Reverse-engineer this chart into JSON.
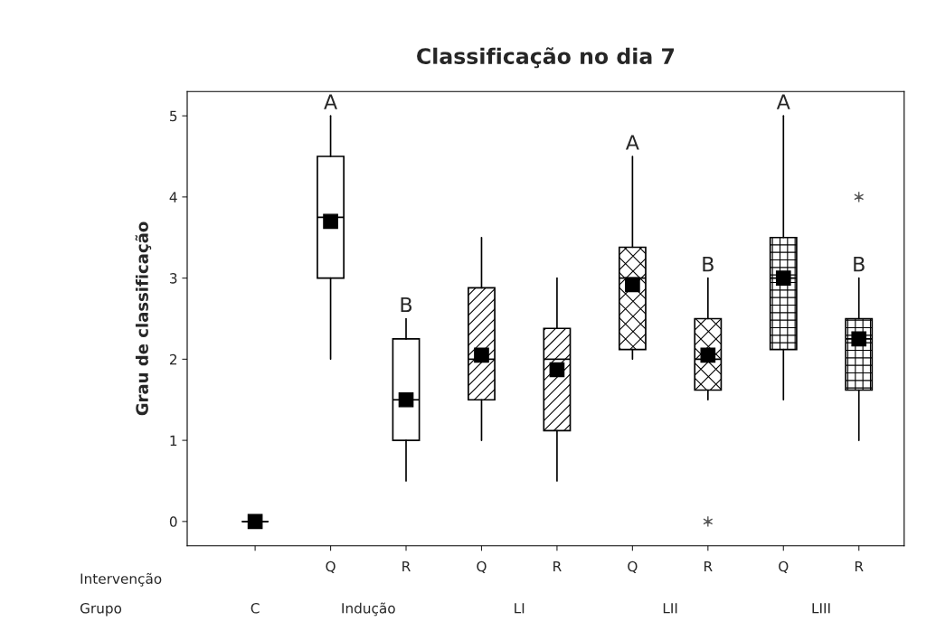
{
  "chart_data": {
    "type": "box",
    "title": "Classificação no dia 7",
    "ylabel": "Grau de classificação",
    "xlabel": "Intervenção",
    "categories": [
      null,
      "Q",
      "R",
      "Q",
      "R",
      "Q",
      "R",
      "Q",
      "R"
    ],
    "boxes": [
      {
        "low": 0,
        "q1": 0,
        "median": 0,
        "q3": 0,
        "high": 0,
        "mean": 0
      },
      {
        "low": 2,
        "q1": 3,
        "median": 3.75,
        "q3": 4.5,
        "high": 5,
        "mean": 3.7
      },
      {
        "low": 0.5,
        "q1": 1,
        "median": 1.5,
        "q3": 2.25,
        "high": 2.5,
        "mean": 1.5
      },
      {
        "low": 1,
        "q1": 1.5,
        "median": 2,
        "q3": 2.88,
        "high": 3.5,
        "mean": 2.05
      },
      {
        "low": 0.5,
        "q1": 1.12,
        "median": 2,
        "q3": 2.38,
        "high": 3,
        "mean": 1.87
      },
      {
        "low": 2,
        "q1": 2.12,
        "median": 3,
        "q3": 3.38,
        "high": 4.5,
        "mean": 2.92
      },
      {
        "low": 1.5,
        "q1": 1.62,
        "median": 2,
        "q3": 2.5,
        "high": 3,
        "mean": 2.05,
        "outliers": [
          0
        ]
      },
      {
        "low": 1.5,
        "q1": 2.12,
        "median": 3,
        "q3": 3.5,
        "high": 5,
        "mean": 3.0
      },
      {
        "low": 1,
        "q1": 1.62,
        "median": 2.25,
        "q3": 2.5,
        "high": 3,
        "mean": 2.25,
        "outliers": [
          4
        ]
      }
    ],
    "ylim": [
      -0.3,
      5.3
    ],
    "yticks": [
      0,
      1,
      2,
      3,
      4,
      5
    ],
    "grid": false,
    "marker": "square",
    "annotations": [
      "A",
      "B",
      "A",
      "B",
      "A",
      "B",
      "Grupo",
      "C",
      "Indução",
      "LI",
      "LII",
      "LIII"
    ]
  }
}
